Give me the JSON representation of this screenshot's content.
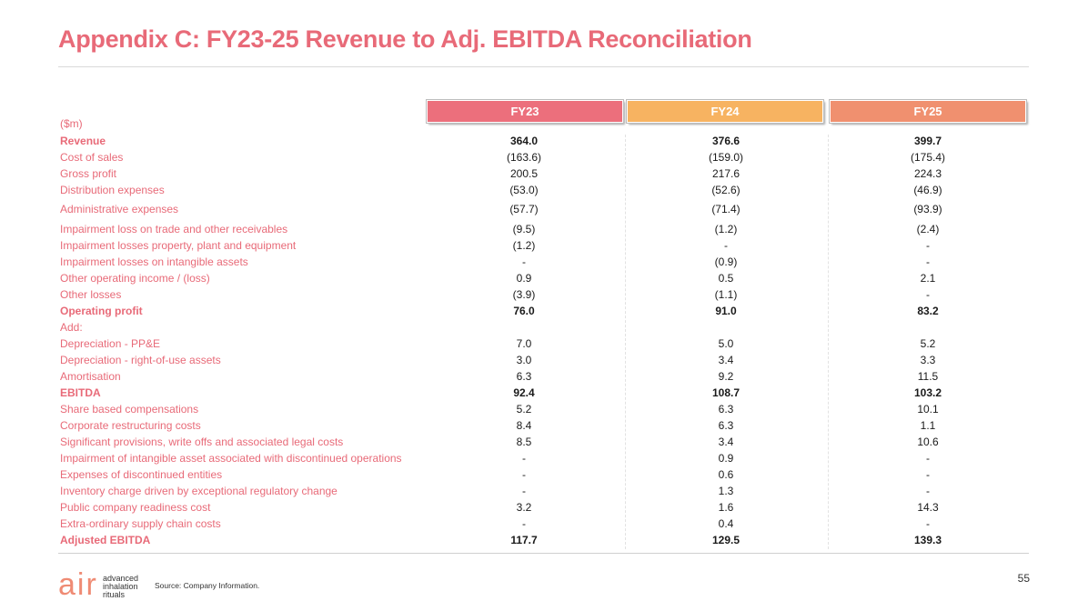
{
  "title": "Appendix C: FY23-25 Revenue to Adj. EBITDA Reconciliation",
  "unit_label": "($m)",
  "columns": [
    {
      "label": "FY23",
      "color": "#ec6f7c"
    },
    {
      "label": "FY24",
      "color": "#f7b361"
    },
    {
      "label": "FY25",
      "color": "#f0906f"
    }
  ],
  "rows": [
    {
      "label": "Revenue",
      "bold": true,
      "values": [
        "364.0",
        "376.6",
        "399.7"
      ]
    },
    {
      "label": "Cost of sales",
      "values": [
        "(163.6)",
        "(159.0)",
        "(175.4)"
      ]
    },
    {
      "label": "Gross profit",
      "values": [
        "200.5",
        "217.6",
        "224.3"
      ]
    },
    {
      "label": "Distribution expenses",
      "values": [
        "(53.0)",
        "(52.6)",
        "(46.9)"
      ]
    },
    {
      "label": "Administrative expenses",
      "values": [
        "(57.7)",
        "(71.4)",
        "(93.9)"
      ]
    },
    {
      "label": "Impairment loss on trade and other receivables",
      "values": [
        "(9.5)",
        "(1.2)",
        "(2.4)"
      ]
    },
    {
      "label": "Impairment losses property, plant and equipment",
      "values": [
        "(1.2)",
        "-",
        "-"
      ]
    },
    {
      "label": "Impairment losses on intangible assets",
      "values": [
        "-",
        "(0.9)",
        "-"
      ]
    },
    {
      "label": "Other operating income / (loss)",
      "values": [
        "0.9",
        "0.5",
        "2.1"
      ]
    },
    {
      "label": "Other losses",
      "values": [
        "(3.9)",
        "(1.1)",
        "-"
      ]
    },
    {
      "label": "Operating profit",
      "bold": true,
      "values": [
        "76.0",
        "91.0",
        "83.2"
      ]
    },
    {
      "label": "Add:",
      "values": [
        "",
        "",
        ""
      ]
    },
    {
      "label": "Depreciation - PP&E",
      "values": [
        "7.0",
        "5.0",
        "5.2"
      ]
    },
    {
      "label": "Depreciation - right-of-use assets",
      "values": [
        "3.0",
        "3.4",
        "3.3"
      ]
    },
    {
      "label": "Amortisation",
      "values": [
        "6.3",
        "9.2",
        "11.5"
      ]
    },
    {
      "label": "EBITDA",
      "bold": true,
      "values": [
        "92.4",
        "108.7",
        "103.2"
      ]
    },
    {
      "label": "Share based compensations",
      "values": [
        "5.2",
        "6.3",
        "10.1"
      ]
    },
    {
      "label": "Corporate restructuring costs",
      "values": [
        "8.4",
        "6.3",
        "1.1"
      ]
    },
    {
      "label": "Significant provisions, write offs and associated legal costs",
      "values": [
        "8.5",
        "3.4",
        "10.6"
      ]
    },
    {
      "label": "Impairment of intangible asset associated with discontinued operations",
      "values": [
        "-",
        "0.9",
        "-"
      ]
    },
    {
      "label": "Expenses of discontinued entities",
      "values": [
        "-",
        "0.6",
        "-"
      ]
    },
    {
      "label": "Inventory charge driven by exceptional regulatory change",
      "values": [
        "-",
        "1.3",
        "-"
      ]
    },
    {
      "label": "Public company readiness cost",
      "values": [
        "3.2",
        "1.6",
        "14.3"
      ]
    },
    {
      "label": "Extra-ordinary supply chain costs",
      "values": [
        "-",
        "0.4",
        "-"
      ]
    },
    {
      "label": "Adjusted EBITDA",
      "bold": true,
      "values": [
        "117.7",
        "129.5",
        "139.3"
      ]
    }
  ],
  "footer": {
    "logo_text": "air",
    "logo_tagline_1": "advanced",
    "logo_tagline_2": "inhalation",
    "logo_tagline_3": "rituals",
    "source": "Source: Company Information.",
    "page_number": "55"
  }
}
